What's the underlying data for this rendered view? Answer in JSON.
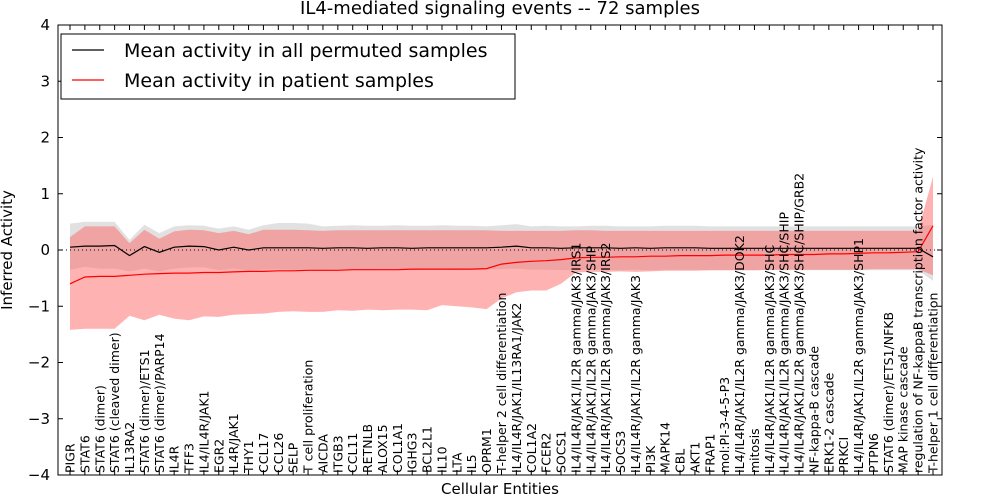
{
  "chart_data": {
    "type": "line",
    "title": "IL4-mediated signaling events -- 72 samples",
    "xlabel": "Cellular Entities",
    "ylabel": "Inferred Activity",
    "ylim": [
      -4,
      4
    ],
    "yticks": [
      -4,
      -3,
      -2,
      -1,
      0,
      1,
      2,
      3,
      4
    ],
    "reference_line_y": 0,
    "legend": {
      "placement": "top-left",
      "entries": [
        {
          "label": "Mean activity in all permuted samples",
          "color": "#000000"
        },
        {
          "label": "Mean activity in patient samples",
          "color": "#ff0000"
        }
      ]
    },
    "categories": [
      "PIGR",
      "STAT6",
      "STAT6 (dimer)",
      "STAT6 (cleaved dimer)",
      "IL13RA2",
      "STAT6 (dimer)/ETS1",
      "STAT6 (dimer)/PARP14",
      "IL4R",
      "TFF3",
      "IL4/IL4R/JAK1",
      "EGR2",
      "IL4R/JAK1",
      "THY1",
      "CCL17",
      "CCL26",
      "SELP",
      "T cell proliferation",
      "AICDA",
      "ITGB3",
      "CCL11",
      "RETNLB",
      "ALOX15",
      "COL1A1",
      "IGHG3",
      "BCL2L1",
      "IL10",
      "LTA",
      "IL5",
      "OPRM1",
      "T-helper 2 cell differentiation",
      "IL4/IL4R/JAK1/IL13RA1/JAK2",
      "COL1A2",
      "FCER2",
      "SOCS1",
      "IL4/IL4R/JAK1/IL2R gamma/JAK3/IRS1",
      "IL4/IL4R/JAK1/IL2R gamma/JAK3/SHP",
      "IL4/IL4R/JAK1/IL2R gamma/JAK3/IRS2",
      "SOCS3",
      "IL4/IL4R/JAK1/IL2R gamma/JAK3",
      "PI3K",
      "MAPK14",
      "CBL",
      "AKT1",
      "FRAP1",
      "mol:PI-3-4-5-P3",
      "IL4/IL4R/JAK1/IL2R gamma/JAK3/DOK2",
      "mitosis",
      "IL4/IL4R/JAK1/IL2R gamma/JAK3/SHC",
      "IL4/IL4R/JAK1/IL2R gamma/JAK3/SHC/SHIP",
      "IL4/IL4R/JAK1/IL2R gamma/JAK3/SHC/SHIP/GRB2",
      "NF-kappa-B cascade",
      "ERK1-2 cascade",
      "PRKCI",
      "IL4/IL4R/JAK1/IL2R gamma/JAK3/SHP1",
      "PTPN6",
      "STAT6 (dimer)/ETS1/NFKB",
      "MAP kinase cascade",
      "regulation of NF-kappaB transcription factor activity",
      "T-helper 1 cell differentiation"
    ],
    "series": [
      {
        "name": "Mean activity in all permuted samples",
        "color": "#000000",
        "values": [
          0.05,
          0.07,
          0.07,
          0.08,
          -0.1,
          0.06,
          -0.04,
          0.05,
          0.07,
          0.06,
          0.0,
          0.05,
          0.0,
          0.04,
          0.04,
          0.04,
          0.04,
          0.03,
          0.04,
          0.04,
          0.03,
          0.04,
          0.04,
          0.03,
          0.04,
          0.04,
          0.04,
          0.04,
          0.04,
          0.05,
          0.07,
          0.04,
          0.04,
          0.03,
          0.04,
          0.04,
          0.04,
          0.03,
          0.04,
          0.03,
          0.04,
          0.04,
          0.04,
          0.03,
          0.03,
          0.03,
          0.03,
          0.03,
          0.03,
          0.03,
          0.03,
          0.03,
          0.03,
          0.03,
          0.03,
          0.03,
          0.03,
          0.03,
          -0.12
        ],
        "band_upper": [
          0.47,
          0.5,
          0.5,
          0.5,
          0.18,
          0.45,
          0.3,
          0.42,
          0.44,
          0.43,
          0.38,
          0.42,
          0.36,
          0.44,
          0.48,
          0.48,
          0.47,
          0.42,
          0.43,
          0.44,
          0.43,
          0.43,
          0.44,
          0.43,
          0.43,
          0.44,
          0.43,
          0.43,
          0.42,
          0.44,
          0.46,
          0.42,
          0.43,
          0.42,
          0.42,
          0.43,
          0.43,
          0.42,
          0.42,
          0.42,
          0.43,
          0.43,
          0.43,
          0.42,
          0.42,
          0.42,
          0.42,
          0.42,
          0.42,
          0.42,
          0.42,
          0.42,
          0.42,
          0.42,
          0.42,
          0.42,
          0.42,
          0.42,
          0.45
        ],
        "band_lower": [
          -0.35,
          -0.3,
          -0.33,
          -0.33,
          -0.38,
          -0.33,
          -0.38,
          -0.33,
          -0.31,
          -0.31,
          -0.36,
          -0.33,
          -0.36,
          -0.34,
          -0.34,
          -0.35,
          -0.35,
          -0.36,
          -0.35,
          -0.35,
          -0.36,
          -0.35,
          -0.35,
          -0.36,
          -0.35,
          -0.35,
          -0.36,
          -0.35,
          -0.35,
          -0.34,
          -0.33,
          -0.35,
          -0.35,
          -0.36,
          -0.35,
          -0.35,
          -0.35,
          -0.36,
          -0.35,
          -0.36,
          -0.35,
          -0.35,
          -0.35,
          -0.36,
          -0.36,
          -0.36,
          -0.36,
          -0.36,
          -0.36,
          -0.36,
          -0.36,
          -0.36,
          -0.36,
          -0.36,
          -0.36,
          -0.36,
          -0.36,
          -0.36,
          -0.55
        ]
      },
      {
        "name": "Mean activity in patient samples",
        "color": "#ff0000",
        "values": [
          -0.6,
          -0.48,
          -0.47,
          -0.47,
          -0.45,
          -0.43,
          -0.42,
          -0.41,
          -0.41,
          -0.4,
          -0.4,
          -0.39,
          -0.38,
          -0.38,
          -0.37,
          -0.37,
          -0.36,
          -0.36,
          -0.36,
          -0.35,
          -0.35,
          -0.35,
          -0.35,
          -0.34,
          -0.34,
          -0.34,
          -0.34,
          -0.34,
          -0.33,
          -0.25,
          -0.22,
          -0.2,
          -0.19,
          -0.17,
          -0.14,
          -0.13,
          -0.13,
          -0.12,
          -0.12,
          -0.11,
          -0.11,
          -0.1,
          -0.1,
          -0.1,
          -0.09,
          -0.09,
          -0.09,
          -0.09,
          -0.08,
          -0.08,
          -0.08,
          -0.07,
          -0.07,
          -0.06,
          -0.05,
          -0.05,
          -0.04,
          -0.03,
          0.43
        ],
        "band_upper": [
          0.23,
          0.42,
          0.42,
          0.42,
          0.12,
          0.36,
          0.2,
          0.33,
          0.36,
          0.35,
          0.3,
          0.34,
          0.28,
          0.36,
          0.36,
          0.36,
          0.35,
          0.34,
          0.35,
          0.35,
          0.35,
          0.35,
          0.35,
          0.35,
          0.35,
          0.35,
          0.35,
          0.35,
          0.35,
          0.34,
          0.34,
          0.34,
          0.34,
          0.34,
          0.35,
          0.35,
          0.34,
          0.34,
          0.34,
          0.34,
          0.34,
          0.34,
          0.34,
          0.34,
          0.34,
          0.34,
          0.34,
          0.34,
          0.34,
          0.34,
          0.34,
          0.34,
          0.34,
          0.34,
          0.34,
          0.34,
          0.34,
          0.34,
          1.3
        ],
        "band_lower": [
          -1.42,
          -1.4,
          -1.4,
          -1.4,
          -1.17,
          -1.25,
          -1.15,
          -1.22,
          -1.25,
          -1.18,
          -1.19,
          -1.15,
          -1.14,
          -1.13,
          -1.1,
          -1.09,
          -1.1,
          -1.1,
          -1.07,
          -1.08,
          -1.06,
          -1.07,
          -1.06,
          -1.06,
          -1.07,
          -0.98,
          -1.0,
          -1.02,
          -1.05,
          -0.86,
          -0.75,
          -0.72,
          -0.72,
          -0.6,
          -0.4,
          -0.39,
          -0.39,
          -0.38,
          -0.39,
          -0.38,
          -0.37,
          -0.37,
          -0.37,
          -0.36,
          -0.36,
          -0.36,
          -0.36,
          -0.35,
          -0.35,
          -0.35,
          -0.35,
          -0.35,
          -0.35,
          -0.35,
          -0.34,
          -0.34,
          -0.34,
          -0.34,
          -0.45
        ]
      }
    ]
  }
}
